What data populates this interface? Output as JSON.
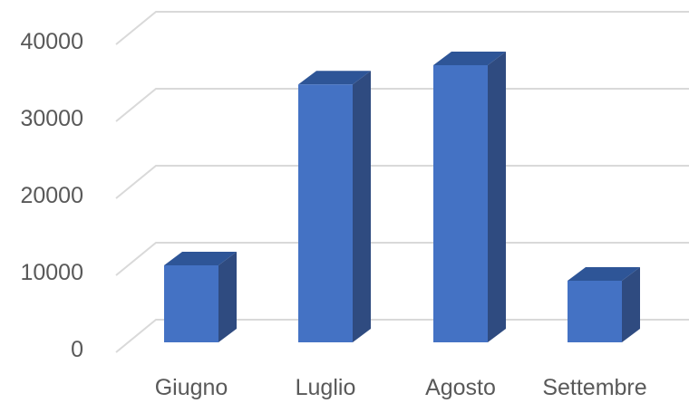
{
  "chart_data": {
    "type": "bar",
    "style": "3d-column",
    "categories": [
      "Giugno",
      "Luglio",
      "Agosto",
      "Settembre"
    ],
    "series": [
      {
        "values": [
          10000,
          33500,
          36000,
          8000
        ]
      }
    ],
    "yticks": [
      "0",
      "10000",
      "20000",
      "30000",
      "40000"
    ],
    "ylim": [
      0,
      45000
    ],
    "grid": true,
    "legend": "none",
    "colors": {
      "front": "#4472c4",
      "side": "#2f4b80",
      "top": "#2e5597",
      "grid": "#d9d9d9",
      "text": "#595959"
    }
  }
}
